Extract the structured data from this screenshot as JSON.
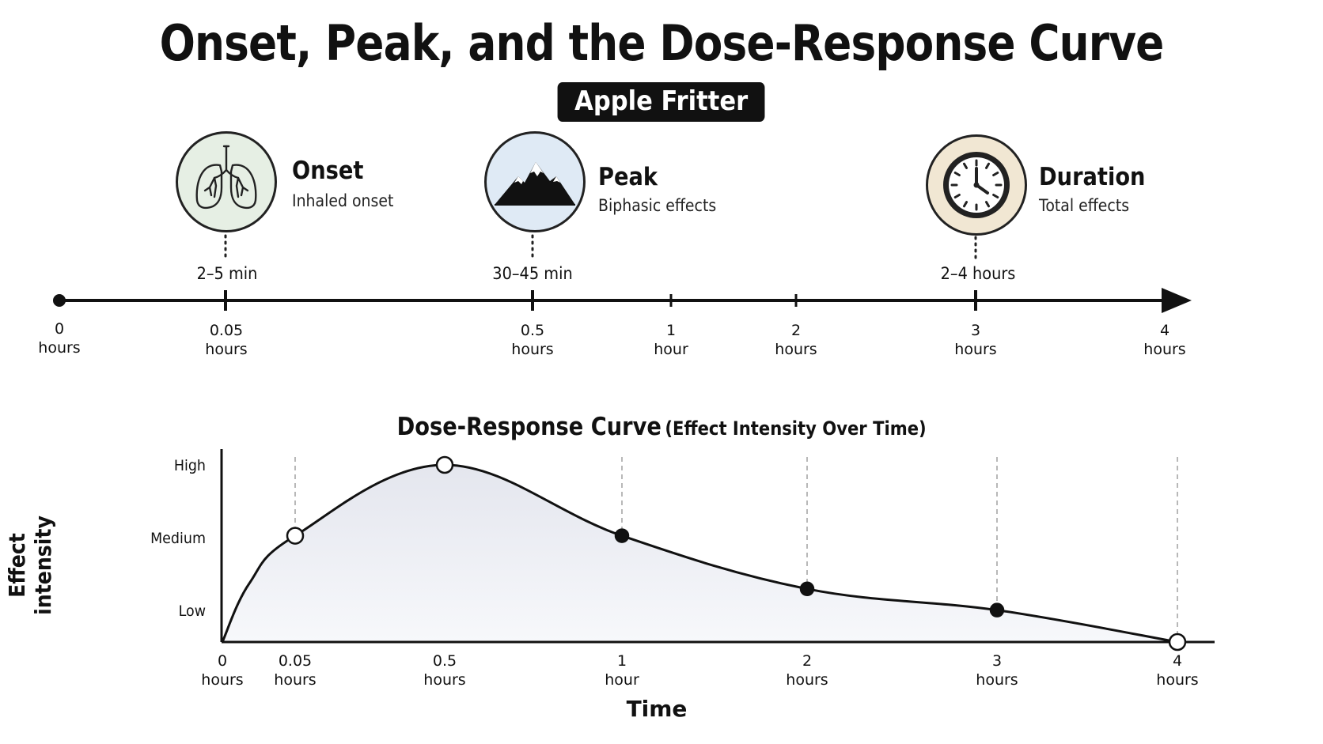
{
  "title": "Onset, Peak, and the Dose-Response Curve",
  "badge": "Apple Fritter",
  "stages": [
    {
      "name": "Onset",
      "desc": "Inhaled onset",
      "time": "2–5 min",
      "icon": "lungs-icon"
    },
    {
      "name": "Peak",
      "desc": "Biphasic effects",
      "time": "30–45 min",
      "icon": "mountain-icon"
    },
    {
      "name": "Duration",
      "desc": "Total effects",
      "time": "2–4 hours",
      "icon": "clock-icon"
    }
  ],
  "timeline": {
    "ticks": [
      {
        "value": "0",
        "unit": "hours"
      },
      {
        "value": "0.05",
        "unit": "hours"
      },
      {
        "value": "0.5",
        "unit": "hours"
      },
      {
        "value": "1",
        "unit": "hour"
      },
      {
        "value": "2",
        "unit": "hours"
      },
      {
        "value": "3",
        "unit": "hours"
      },
      {
        "value": "4",
        "unit": "hours"
      }
    ]
  },
  "chart_data": {
    "type": "line",
    "title": "Dose-Response Curve",
    "subtitle": "(Effect Intensity Over Time)",
    "xlabel": "Time",
    "ylabel": "Effect intensity",
    "y_levels": [
      "Low",
      "Medium",
      "High"
    ],
    "x_ticks": [
      {
        "value": "0",
        "unit": "hours"
      },
      {
        "value": "0.05",
        "unit": "hours"
      },
      {
        "value": "0.5",
        "unit": "hours"
      },
      {
        "value": "1",
        "unit": "hour"
      },
      {
        "value": "2",
        "unit": "hours"
      },
      {
        "value": "3",
        "unit": "hours"
      },
      {
        "value": "4",
        "unit": "hours"
      }
    ],
    "points": [
      {
        "x": "0",
        "y": 0.0,
        "marker": "none"
      },
      {
        "x": "0.05",
        "y": 0.6,
        "marker": "open"
      },
      {
        "x": "0.5",
        "y": 1.0,
        "marker": "open"
      },
      {
        "x": "1",
        "y": 0.6,
        "marker": "filled"
      },
      {
        "x": "2",
        "y": 0.3,
        "marker": "filled"
      },
      {
        "x": "3",
        "y": 0.18,
        "marker": "filled"
      },
      {
        "x": "4",
        "y": 0.0,
        "marker": "open"
      }
    ],
    "grid": "vertical-dashed",
    "fill": "gradient-under-curve"
  }
}
